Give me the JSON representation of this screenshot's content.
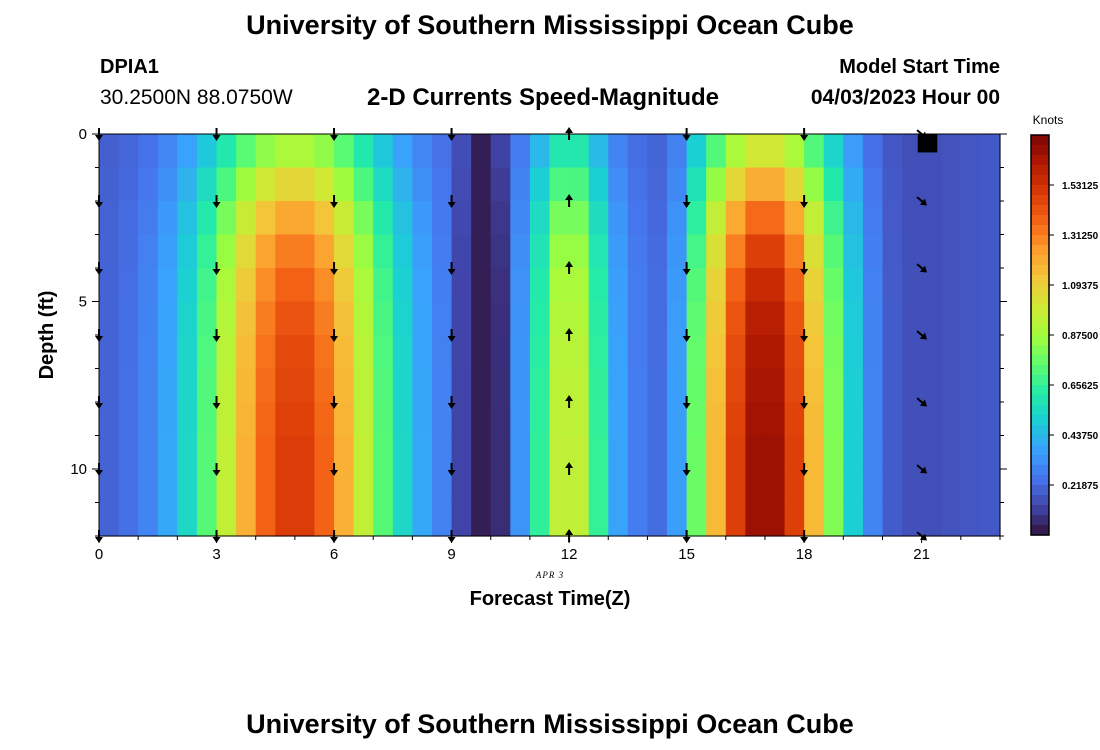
{
  "header": {
    "title": "University of Southern Mississippi Ocean Cube",
    "station_id": "DPIA1",
    "coordinates": "30.2500N  88.0750W",
    "subtitle": "2-D Currents Speed-Magnitude",
    "model_start_label": "Model Start Time",
    "model_start_value": "04/03/2023 Hour 00"
  },
  "footer": {
    "title": "University of Southern Mississippi Ocean Cube"
  },
  "chart_data": {
    "type": "heatmap",
    "title": "2-D Currents Speed-Magnitude",
    "xlabel": "Forecast Time(Z)",
    "ylabel": "Depth (ft)",
    "date_label": "APR 3",
    "x_ticks": [
      0,
      3,
      6,
      9,
      12,
      15,
      18,
      21
    ],
    "y_ticks": [
      0,
      5,
      10
    ],
    "xlim": [
      0,
      23
    ],
    "ylim": [
      0,
      12
    ],
    "colorbar_label": "Knots",
    "colorbar_ticks": [
      "1.53125",
      "1.31250",
      "1.09375",
      "0.87500",
      "0.65625",
      "0.43750",
      "0.21875"
    ],
    "colorbar_tick_values": [
      1.53125,
      1.3125,
      1.09375,
      0.875,
      0.65625,
      0.4375,
      0.21875
    ],
    "colorbar_range": [
      0,
      1.75
    ],
    "colors": {
      "scale": [
        "#30123b",
        "#4145ab",
        "#4675ed",
        "#39a2fc",
        "#1bcfd4",
        "#24eca6",
        "#61fc6c",
        "#a4fc3b",
        "#d1e834",
        "#f3c63a",
        "#fe9b2d",
        "#f36315",
        "#d93806",
        "#b11901",
        "#7a0403"
      ]
    },
    "time_hours": [
      0,
      0.5,
      1,
      1.5,
      2,
      2.5,
      3,
      3.5,
      4,
      4.5,
      5,
      5.5,
      6,
      6.5,
      7,
      7.5,
      8,
      8.5,
      9,
      9.5,
      10,
      10.5,
      11,
      11.5,
      12,
      12.5,
      13,
      13.5,
      14,
      14.5,
      15,
      15.5,
      16,
      16.5,
      17,
      17.5,
      18,
      18.5,
      19,
      19.5,
      20,
      20.5,
      21,
      21.5,
      22,
      22.5
    ],
    "depth_peak_profile": [
      0.42,
      0.55,
      0.68,
      0.79,
      0.87,
      0.92,
      0.95,
      0.97,
      0.98,
      0.99,
      1.0,
      1.0
    ],
    "speed_peaks": [
      {
        "hour": 5,
        "depth10_peak_knots": 1.5
      },
      {
        "hour": 12,
        "depth10_peak_knots": 1.0
      },
      {
        "hour": 17,
        "depth10_peak_knots": 1.7
      },
      {
        "hour": 21,
        "depth10_peak_knots": 0.15
      }
    ],
    "arrows": [
      {
        "hour": 0,
        "direction": "S"
      },
      {
        "hour": 3,
        "direction": "S"
      },
      {
        "hour": 6,
        "direction": "S"
      },
      {
        "hour": 9,
        "direction": "S"
      },
      {
        "hour": 12,
        "direction": "N"
      },
      {
        "hour": 15,
        "direction": "S"
      },
      {
        "hour": 18,
        "direction": "S"
      },
      {
        "hour": 21,
        "direction": "SE"
      }
    ],
    "arrow_depths_ft": [
      0,
      2,
      4,
      6,
      8,
      10,
      12
    ]
  }
}
